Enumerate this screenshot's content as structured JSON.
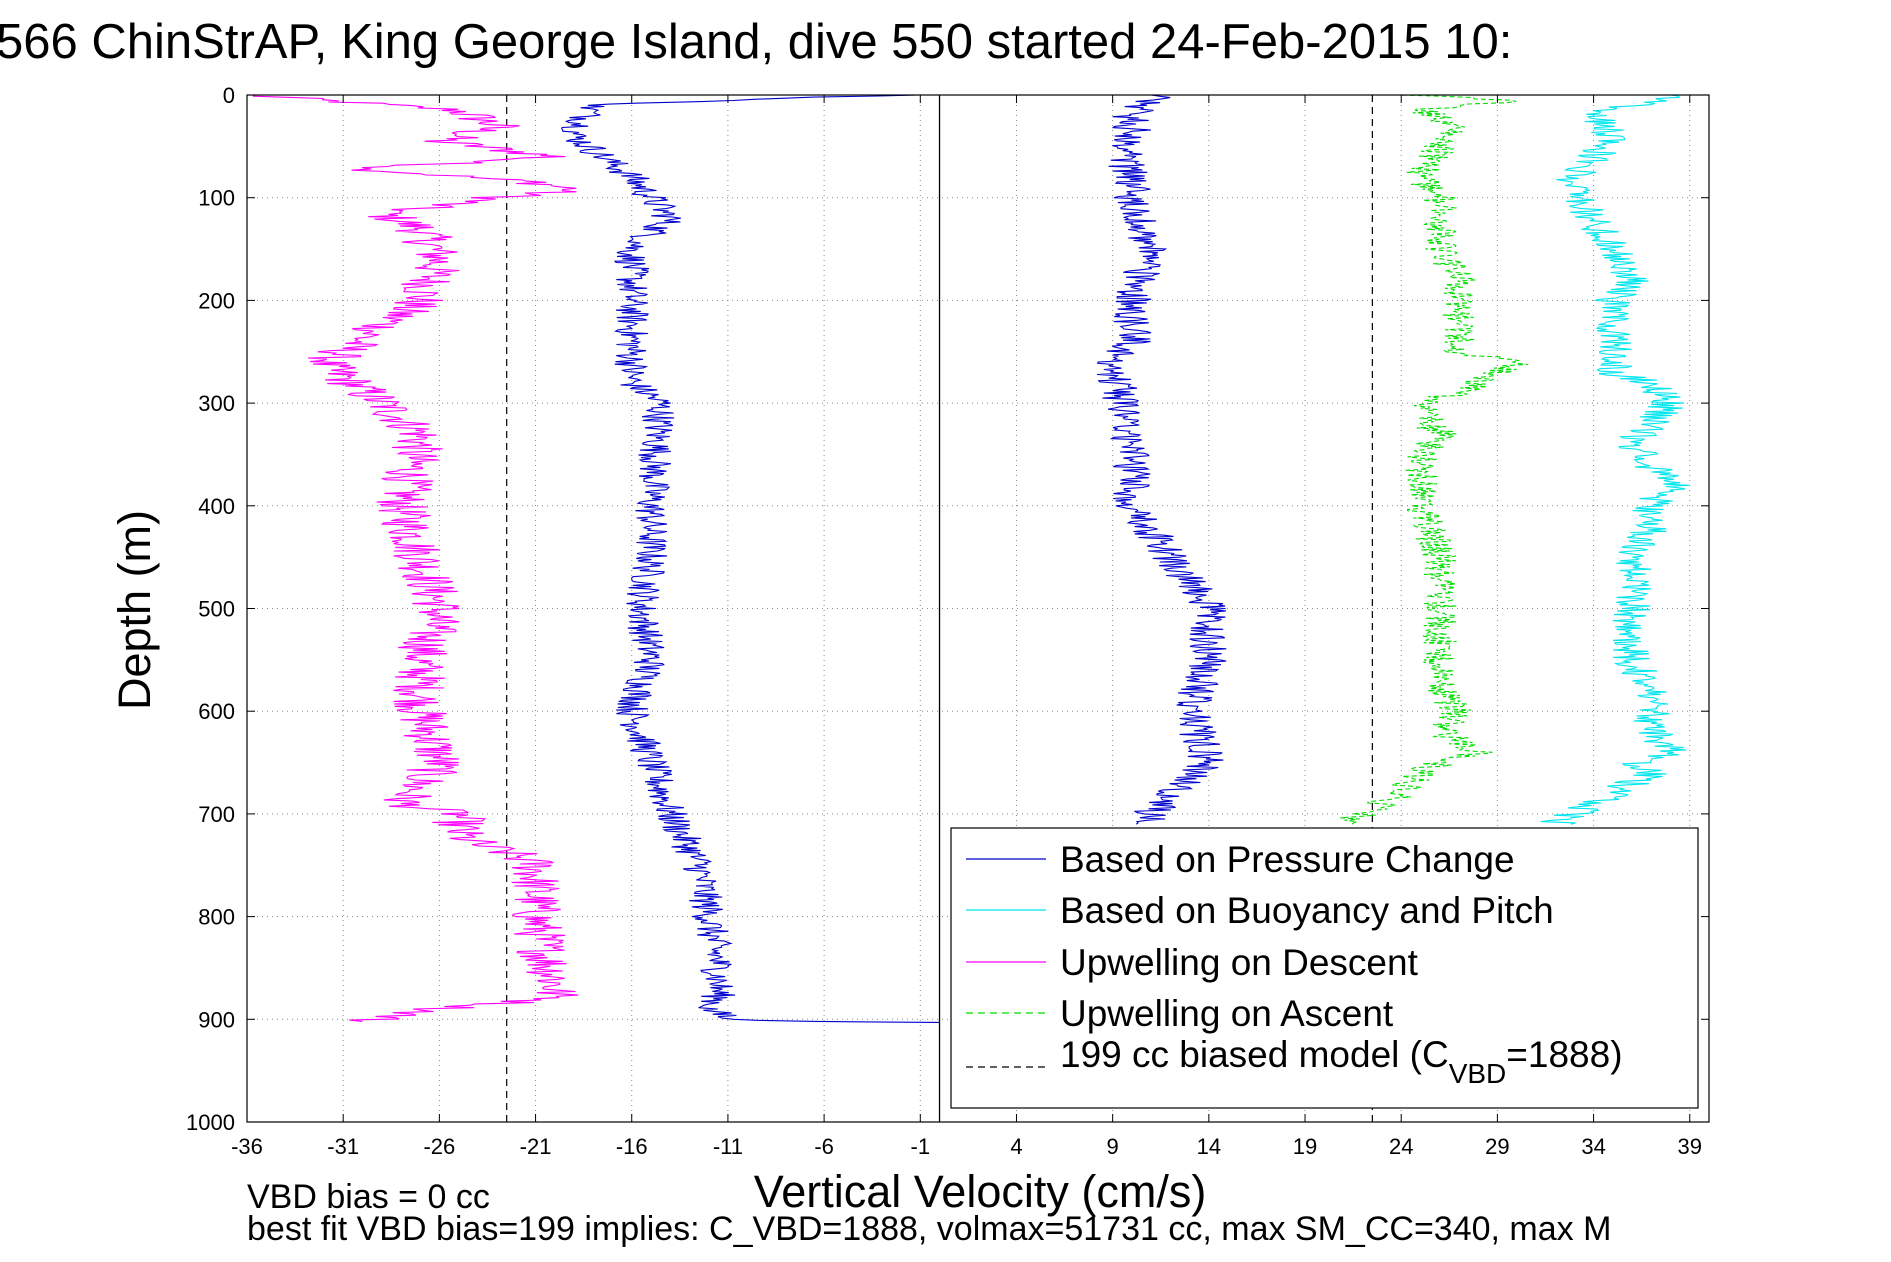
{
  "chart_data": {
    "type": "line",
    "title": "566 ChinStrAP, King George Island, dive 550 started 24-Feb-2015 10:",
    "xlabel": "Vertical Velocity (cm/s)",
    "ylabel": "Depth (m)",
    "xlim": [
      -36,
      40
    ],
    "ylim": [
      0,
      1000
    ],
    "y_inverted": true,
    "grid": true,
    "grid_style": "dotted",
    "x_ticks": [
      -36,
      -31,
      -26,
      -21,
      -16,
      -11,
      -6,
      -1,
      4,
      9,
      14,
      19,
      24,
      29,
      34,
      39
    ],
    "y_ticks": [
      0,
      100,
      200,
      300,
      400,
      500,
      600,
      700,
      800,
      900,
      1000
    ],
    "legend_position": "bottom-right",
    "legend": [
      {
        "label": "Based on Pressure Change",
        "color": "#0000cc",
        "style": "solid"
      },
      {
        "label": "Based on Buoyancy and Pitch",
        "color": "#00e5ee",
        "style": "solid"
      },
      {
        "label": "Upwelling on Descent",
        "color": "#ff00ff",
        "style": "solid"
      },
      {
        "label": "Upwelling on Ascent",
        "color": "#00dd00",
        "style": "dashed"
      },
      {
        "label": "199 cc biased model (C",
        "sub": "VBD",
        "suffix": "=1888)",
        "color": "#000000",
        "style": "dashed"
      }
    ],
    "reference_lines": [
      {
        "x": -22.5,
        "style": "dashed",
        "color": "#000000"
      },
      {
        "x": 22.5,
        "style": "dashed",
        "color": "#000000"
      },
      {
        "x": 0,
        "style": "solid",
        "color": "#000000"
      }
    ],
    "series": [
      {
        "name": "Upwelling on Descent",
        "color": "#ff00ff",
        "style": "solid",
        "noise": 1.4,
        "x": [
          -36,
          -30,
          -25,
          -23,
          -26,
          -20,
          -30,
          -21,
          -19,
          -23,
          -29,
          -27,
          -26,
          -27,
          -32,
          -29,
          -27,
          -28,
          -27,
          -26,
          -27,
          -27,
          -26,
          -28,
          -25,
          -25,
          -24,
          -22,
          -21,
          -21,
          -20.5,
          -20,
          -20,
          -26,
          -30
        ],
        "y": [
          0,
          8,
          15,
          30,
          45,
          60,
          72,
          85,
          92,
          100,
          115,
          130,
          160,
          200,
          262,
          300,
          330,
          400,
          450,
          500,
          550,
          600,
          650,
          690,
          700,
          720,
          730,
          740,
          750,
          800,
          840,
          860,
          880,
          890,
          902
        ]
      },
      {
        "name": "Based on Pressure Change (descent)",
        "color": "#0000cc",
        "style": "solid",
        "noise": 0.9,
        "x": [
          -1,
          -8,
          -18,
          -19,
          -16,
          -15,
          -14,
          -16,
          -16,
          -16,
          -14.5,
          -15,
          -15,
          -15.5,
          -15,
          -16,
          -14,
          -12.5,
          -12,
          -11.5,
          -11.5,
          -12,
          -11,
          -7,
          0
        ],
        "y": [
          0,
          3,
          10,
          40,
          80,
          100,
          120,
          150,
          200,
          280,
          300,
          400,
          450,
          500,
          550,
          600,
          700,
          750,
          800,
          850,
          880,
          890,
          900,
          902,
          903
        ]
      },
      {
        "name": "Based on Pressure Change (ascent)",
        "color": "#0000cc",
        "style": "solid",
        "noise": 1.0,
        "x": [
          11,
          11,
          11.5,
          14,
          13,
          14,
          14,
          12,
          10,
          10,
          9.5,
          9,
          10,
          10,
          11,
          10,
          10,
          9.5,
          10,
          10,
          10.5,
          11,
          11
        ],
        "y": [
          710,
          700,
          690,
          650,
          600,
          550,
          500,
          450,
          400,
          350,
          300,
          260,
          240,
          200,
          150,
          100,
          80,
          60,
          40,
          20,
          10,
          5,
          0
        ]
      },
      {
        "name": "Upwelling on Ascent",
        "color": "#00dd00",
        "style": "dashed",
        "noise": 0.9,
        "x": [
          21,
          22,
          24,
          25,
          26,
          28,
          26,
          27,
          26,
          26,
          26,
          26,
          25,
          25,
          26,
          25,
          25,
          27,
          30,
          27,
          27,
          27,
          26,
          26,
          26,
          26,
          25,
          26,
          27,
          25,
          30,
          24
        ],
        "y": [
          710,
          700,
          680,
          660,
          650,
          640,
          620,
          600,
          580,
          550,
          500,
          450,
          400,
          350,
          330,
          310,
          300,
          290,
          260,
          250,
          200,
          180,
          150,
          120,
          110,
          100,
          80,
          50,
          30,
          15,
          5,
          0
        ]
      },
      {
        "name": "Based on Buoyancy and Pitch",
        "color": "#00e5ee",
        "style": "solid",
        "noise": 1.0,
        "x": [
          32,
          33,
          35,
          37,
          36,
          38,
          37,
          37,
          37,
          36,
          36,
          36,
          36,
          37,
          37,
          38,
          37,
          36,
          38,
          37,
          35,
          35,
          35,
          35,
          36,
          35,
          34,
          33,
          33,
          34,
          35,
          34,
          38
        ],
        "y": [
          710,
          700,
          680,
          660,
          650,
          640,
          620,
          600,
          580,
          550,
          500,
          470,
          450,
          420,
          400,
          380,
          360,
          340,
          300,
          280,
          270,
          250,
          220,
          200,
          180,
          150,
          120,
          100,
          80,
          60,
          40,
          20,
          0
        ]
      }
    ]
  },
  "footer": {
    "vbd_bias": "VBD bias = 0 cc",
    "best_fit": "best fit VBD bias=199 implies: C_VBD=1888, volmax=51731 cc, max SM_CC=340, max M"
  }
}
